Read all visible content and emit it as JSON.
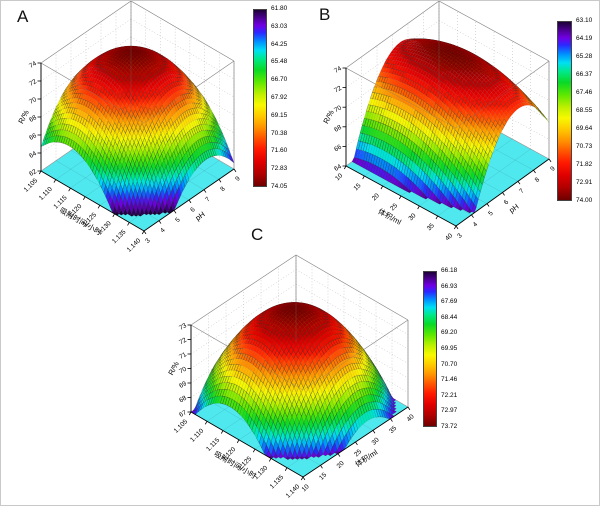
{
  "figure_background": "#ffffff",
  "colors": {
    "floor": "#50e8ef",
    "frame": "#999999",
    "axis": "#000000",
    "colormap_stops": [
      [
        0.0,
        "#1c0036"
      ],
      [
        0.05,
        "#50009b"
      ],
      [
        0.09,
        "#7000e6"
      ],
      [
        0.13,
        "#2a2aff"
      ],
      [
        0.18,
        "#0090ff"
      ],
      [
        0.23,
        "#00e0f2"
      ],
      [
        0.28,
        "#00e887"
      ],
      [
        0.34,
        "#0ad926"
      ],
      [
        0.41,
        "#5fe800"
      ],
      [
        0.48,
        "#c0f000"
      ],
      [
        0.54,
        "#f8f800"
      ],
      [
        0.61,
        "#ffc400"
      ],
      [
        0.67,
        "#ff9000"
      ],
      [
        0.73,
        "#ff5200"
      ],
      [
        0.79,
        "#ff1a00"
      ],
      [
        0.86,
        "#e00000"
      ],
      [
        0.93,
        "#b00000"
      ],
      [
        1.0,
        "#6e0000"
      ]
    ]
  },
  "chart_data": [
    {
      "type": "surface3d",
      "panel": "A",
      "xlabel": "吸附时间/小时",
      "x_ticks": [
        1.105,
        1.11,
        1.115,
        1.12,
        1.125,
        1.13,
        1.135,
        1.14
      ],
      "x_decimals": 3,
      "ylabel": "pH",
      "y_ticks": [
        3,
        4,
        5,
        6,
        7,
        8,
        9
      ],
      "y_decimals": 0,
      "zlabel": "R/%",
      "z_ticks": [
        62,
        64,
        66,
        68,
        70,
        72,
        74
      ],
      "z_decimals": 0,
      "z_range": [
        62,
        74
      ],
      "floor_z": 62,
      "colorbar_ticks": [
        61.8,
        63.03,
        64.25,
        65.48,
        66.7,
        67.92,
        69.15,
        70.38,
        71.6,
        72.83,
        74.05
      ],
      "colorbar_range": [
        61.8,
        74.05
      ],
      "grid": true,
      "surface_model": {
        "peak_z": 74.05,
        "peak_u": 0.4,
        "peak_v": 0.55,
        "curv_u": 26,
        "curv_v": 26,
        "cross": -12
      }
    },
    {
      "type": "surface3d",
      "panel": "B",
      "xlabel": "体积/ml",
      "x_ticks": [
        10,
        15,
        20,
        25,
        30,
        35,
        40
      ],
      "x_decimals": 0,
      "ylabel": "pH",
      "y_ticks": [
        3,
        4,
        5,
        6,
        7,
        8,
        9
      ],
      "y_decimals": 0,
      "zlabel": "R/%",
      "z_ticks": [
        64,
        66,
        68,
        70,
        72,
        74
      ],
      "z_decimals": 0,
      "z_range": [
        64,
        74
      ],
      "floor_z": 64,
      "colorbar_ticks": [
        63.1,
        64.19,
        65.28,
        66.37,
        67.46,
        68.55,
        69.64,
        70.73,
        71.82,
        72.91,
        74.0
      ],
      "colorbar_range": [
        63.1,
        74.0
      ],
      "grid": true,
      "surface_model": {
        "peak_z": 74.0,
        "peak_u": 0.42,
        "peak_v": 0.62,
        "curv_u": 8,
        "curv_v": 34,
        "cross": -6
      }
    },
    {
      "type": "surface3d",
      "panel": "C",
      "xlabel": "吸附时间/小时",
      "x_ticks": [
        1.105,
        1.11,
        1.115,
        1.12,
        1.125,
        1.13,
        1.135,
        1.14
      ],
      "x_decimals": 3,
      "ylabel": "体积/ml",
      "y_ticks": [
        10,
        15,
        20,
        25,
        30,
        35,
        40
      ],
      "y_decimals": 0,
      "zlabel": "R/%",
      "z_ticks": [
        67,
        68,
        69,
        70,
        71,
        72,
        73
      ],
      "z_decimals": 0,
      "z_range": [
        67,
        73
      ],
      "floor_z": 67,
      "colorbar_ticks": [
        66.18,
        66.93,
        67.69,
        68.44,
        69.2,
        69.95,
        70.7,
        71.46,
        72.21,
        72.97,
        73.72
      ],
      "colorbar_range": [
        66.18,
        73.72
      ],
      "grid": true,
      "surface_model": {
        "peak_z": 73.72,
        "peak_u": 0.45,
        "peak_v": 0.5,
        "curv_u": 20,
        "curv_v": 20,
        "cross": -8
      }
    }
  ]
}
